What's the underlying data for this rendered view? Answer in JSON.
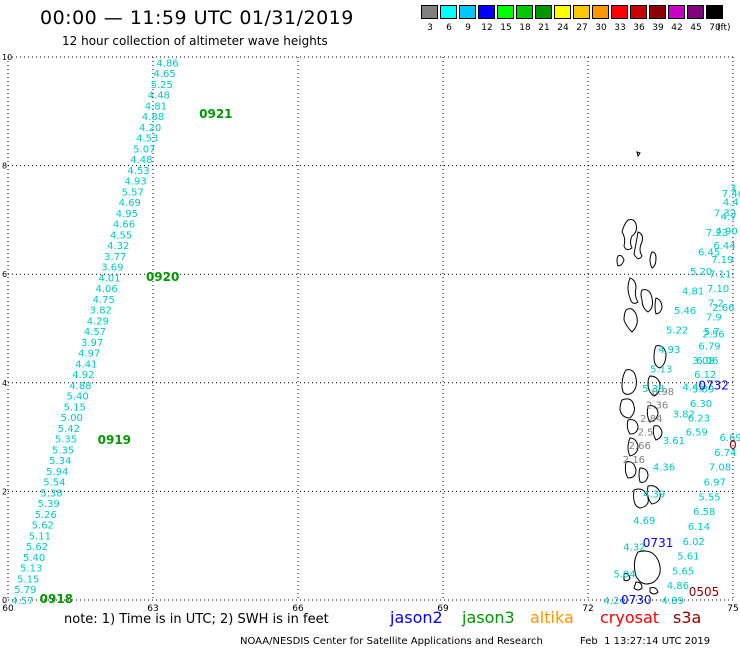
{
  "header": {
    "title": "00:00 — 11:59 UTC 01/31/2019",
    "subtitle": "12 hour collection of altimeter wave heights"
  },
  "legend": {
    "unit": "(ft)",
    "bins": [
      {
        "label": "3",
        "color": "#808080"
      },
      {
        "label": "6",
        "color": "#00ffff"
      },
      {
        "label": "9",
        "color": "#00c8ff"
      },
      {
        "label": "12",
        "color": "#0000ff"
      },
      {
        "label": "15",
        "color": "#00ff00"
      },
      {
        "label": "18",
        "color": "#00c800"
      },
      {
        "label": "21",
        "color": "#009600"
      },
      {
        "label": "24",
        "color": "#ffff00"
      },
      {
        "label": "27",
        "color": "#ffc800"
      },
      {
        "label": "30",
        "color": "#ff9600"
      },
      {
        "label": "33",
        "color": "#ff0000"
      },
      {
        "label": "36",
        "color": "#c80000"
      },
      {
        "label": "39",
        "color": "#8b0000"
      },
      {
        "label": "42",
        "color": "#c800c8"
      },
      {
        "label": "45",
        "color": "#800080"
      },
      {
        "label": "70",
        "color": "#000000"
      }
    ]
  },
  "footer": {
    "note": "note: 1) Time is in UTC; 2) SWH is in feet",
    "satellites": [
      {
        "name": "jason2",
        "color": "#0000ff"
      },
      {
        "name": "jason3",
        "color": "#009600"
      },
      {
        "name": "altika",
        "color": "#ff9600"
      },
      {
        "name": "cryosat",
        "color": "#ff0000"
      },
      {
        "name": "s3a",
        "color": "#8b0000"
      }
    ],
    "credit": "NOAA/NESDIS Center for Satellite Applications and Research",
    "timestamp": "Feb  1 13:27:14 UTC 2019"
  },
  "chart_data": {
    "type": "scatter",
    "xlim": [
      60,
      75
    ],
    "ylim": [
      0,
      10
    ],
    "x_ticks": [
      "60",
      "63",
      "66",
      "69",
      "72",
      "75"
    ],
    "y_ticks": [
      "0",
      "2",
      "4",
      "6",
      "8",
      "10"
    ],
    "grid": true,
    "tracks": [
      {
        "color": "#00c8c8",
        "x_start": 60.3,
        "y_start": 0.0,
        "x_end": 63.3,
        "y_end": 9.9,
        "values": [
          "4.57",
          "5.79",
          "5.15",
          "5.13",
          "5.40",
          "5.62",
          "5.11",
          "5.62",
          "5.26",
          "5.39",
          "5.38",
          "5.54",
          "5.94",
          "5.34",
          "5.35",
          "5.35",
          "5.42",
          "5.00",
          "5.15",
          "5.40",
          "4.88",
          "4.92",
          "4.41",
          "4.97",
          "3.97",
          "4.57",
          "4.29",
          "3.82",
          "4.75",
          "4.06",
          "4.01",
          "3.69",
          "3.77",
          "4.32",
          "4.55",
          "4.66",
          "4.95",
          "4.69",
          "5.57",
          "4.93",
          "4.53",
          "4.48",
          "5.07",
          "4.53",
          "4.20",
          "4.88",
          "4.81",
          "4.48",
          "5.25",
          "4.65",
          "4.86"
        ],
        "times": [
          {
            "label": "0918",
            "x": 61.0,
            "y": 0.02
          },
          {
            "label": "0919",
            "x": 62.2,
            "y": 2.95
          },
          {
            "label": "0920",
            "x": 63.2,
            "y": 5.95
          },
          {
            "label": "0921",
            "x": 64.3,
            "y": 8.95
          }
        ]
      },
      {
        "color": "#00c8c8",
        "x_start": 72.55,
        "y_start": 0.0,
        "x_end": 74.8,
        "y_end": 5.4,
        "values": [
          "4.24",
          "5.04",
          "4.32",
          "4.69",
          "4.39",
          "4.36",
          "3.61",
          "3.82",
          "4.45",
          "3.08",
          "2.56",
          "2.66"
        ],
        "times": []
      },
      {
        "color": "#808080",
        "x_start": 72.95,
        "y_start": 2.6,
        "x_end": 73.55,
        "y_end": 3.85,
        "values": [
          "2.16",
          "2.66",
          "2.5",
          "2.84",
          "2.36",
          "0.98"
        ],
        "times": []
      },
      {
        "color": "#00c8c8",
        "x_start": 73.35,
        "y_start": 3.9,
        "x_end": 75.0,
        "y_end": 7.5,
        "values": [
          "5.38",
          "5.13",
          "4.93",
          "5.22",
          "5.46",
          "4.81",
          "5.20",
          "6.45",
          "7.23",
          "7.32",
          "7.46"
        ],
        "times": []
      },
      {
        "color": "#00c8c8",
        "x_start": 73.75,
        "y_start": 0.0,
        "x_end": 74.95,
        "y_end": 3.0,
        "values": [
          "4.89",
          "4.86",
          "5.65",
          "5.61",
          "6.02",
          "6.14",
          "6.58",
          "5.55",
          "6.97",
          "7.08",
          "6.74",
          "6.69"
        ],
        "times": []
      },
      {
        "color": "#00c8c8",
        "x_start": 74.25,
        "y_start": 3.1,
        "x_end": 75.0,
        "y_end": 7.6,
        "values": [
          "6.59",
          "6.23",
          "6.30",
          "5.89",
          "6.12",
          "6.06",
          "6.79",
          "5.7",
          "7.9",
          "7.2",
          "7.10",
          "7.11",
          "7.19",
          "6.44",
          "4.90",
          "4.7",
          "4.4",
          "3"
        ],
        "times": []
      }
    ],
    "time_labels": [
      {
        "label": "0730",
        "color": "#0000ff",
        "x": 73.0,
        "y": 0.0
      },
      {
        "label": "0731",
        "color": "#0000ff",
        "x": 73.45,
        "y": 1.05
      },
      {
        "label": "0732",
        "color": "#0000ff",
        "x": 74.6,
        "y": 3.95
      },
      {
        "label": "0505",
        "color": "#8b0000",
        "x": 74.4,
        "y": 0.15
      },
      {
        "label": "0",
        "color": "#8b0000",
        "x": 75.0,
        "y": 2.85
      }
    ]
  }
}
